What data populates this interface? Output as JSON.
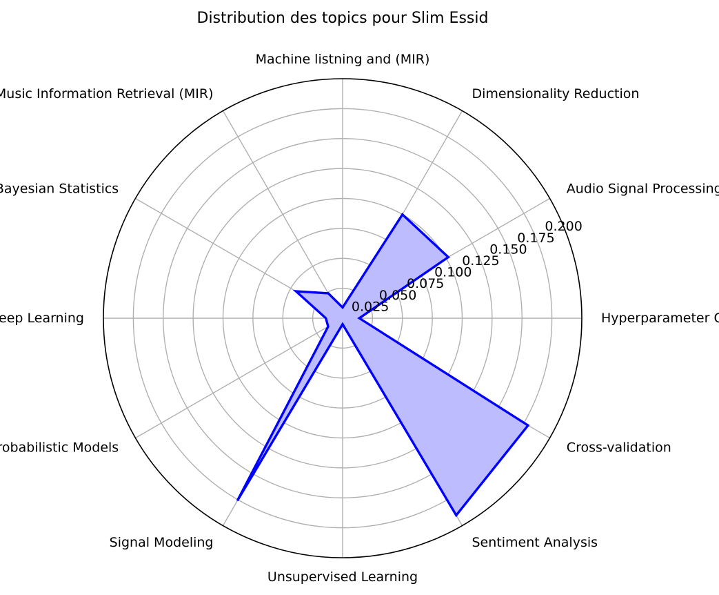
{
  "chart_data": {
    "type": "radar",
    "title": "Distribution des topics pour Slim Essid",
    "categories": [
      "Machine listning and (MIR)",
      "Dimensionality Reduction",
      "Audio Signal Processing",
      "Hyperparameter Optimization",
      "Cross-validation",
      "Sentiment Analysis",
      "Unsupervised Learning",
      "Signal Modeling",
      "Probabilistic Models",
      "Deep Learning",
      "Bayesian Statistics",
      "Machine Listening and Music Information Retrieval (MIR)"
    ],
    "series": [
      {
        "values": [
          0.009,
          0.1,
          0.102,
          0.014,
          0.179,
          0.19,
          0.005,
          0.176,
          0.014,
          0.014,
          0.045,
          0.024
        ]
      }
    ],
    "rticks": [
      0.025,
      0.05,
      0.075,
      0.1,
      0.125,
      0.15,
      0.175,
      0.2
    ],
    "rtick_labels": [
      "0.025",
      "0.050",
      "0.075",
      "0.100",
      "0.125",
      "0.150",
      "0.175",
      "0.200"
    ],
    "rlim": [
      0,
      0.2
    ],
    "grid": true,
    "colors": {
      "line": "#0000ff",
      "fill": "#bcbcff",
      "grid": "#b0b0b0",
      "frame": "#000000"
    }
  }
}
